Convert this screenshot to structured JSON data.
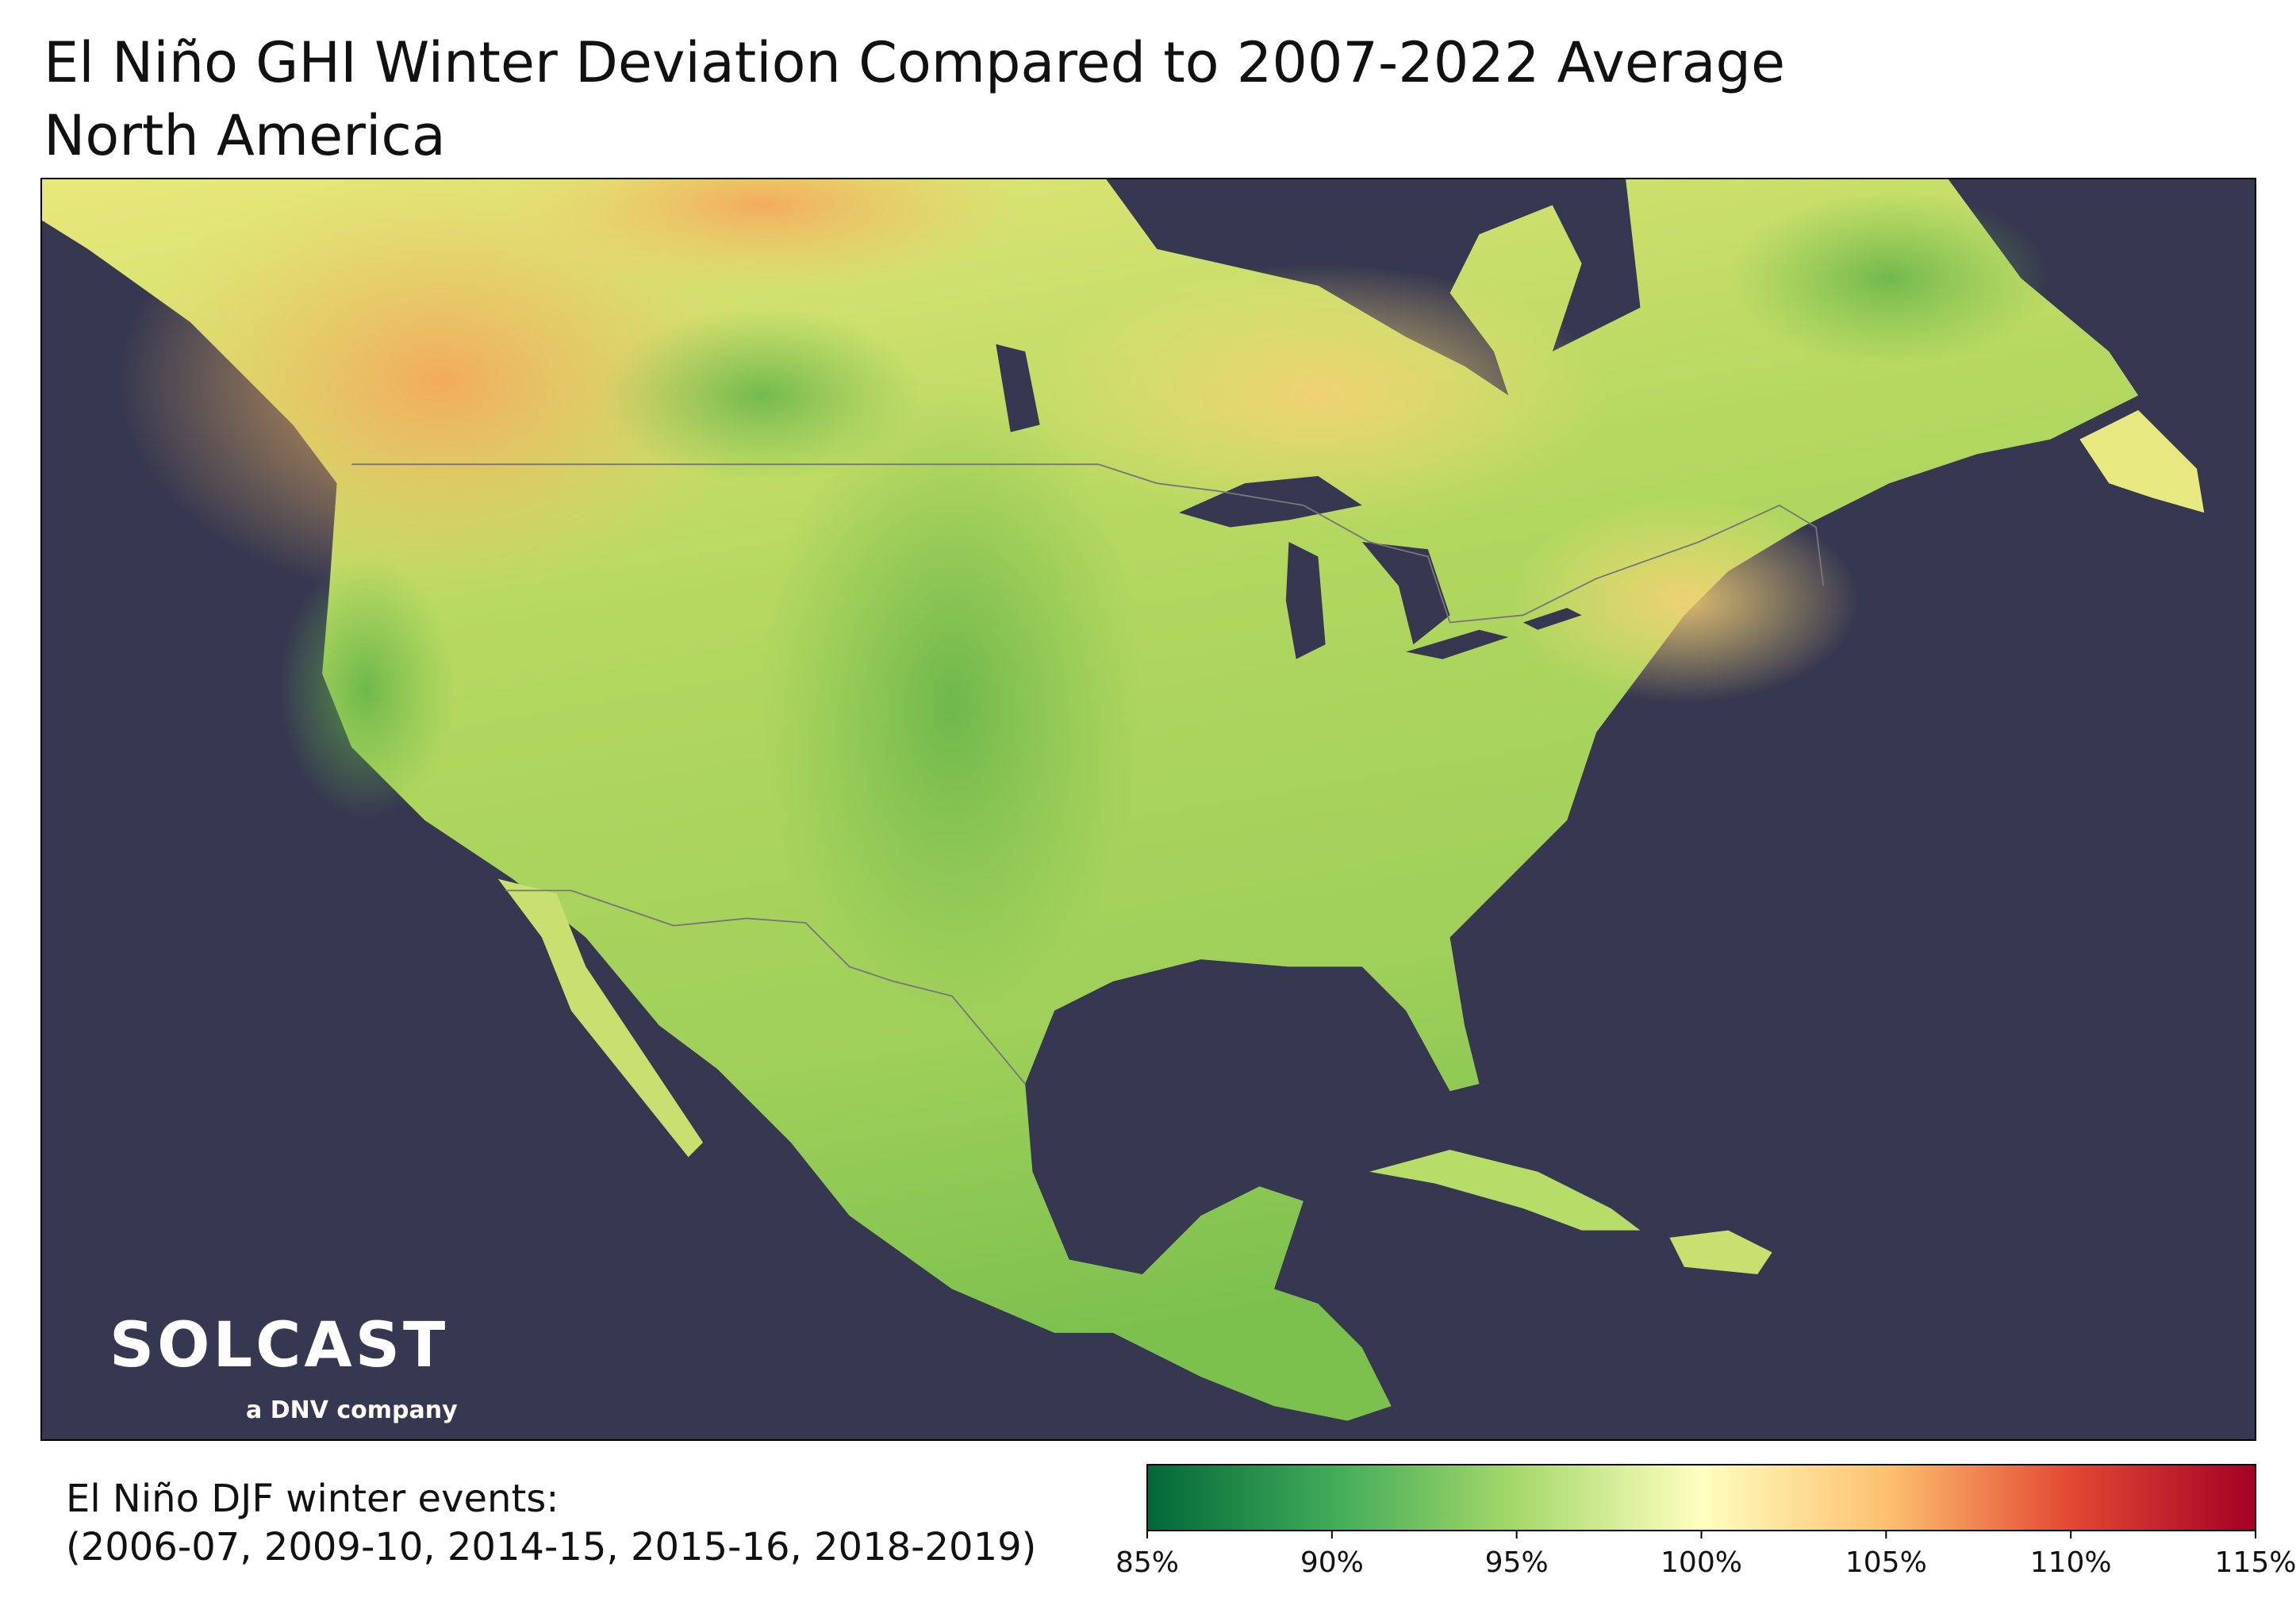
{
  "title": "El Niño GHI Winter Deviation Compared to 2007-2022 Average",
  "subtitle": "North America",
  "logo": {
    "name": "SOLCAST",
    "tagline": "a DNV company"
  },
  "caption": [
    "El Niño DJF winter events:",
    "(2006-07, 2009-10, 2014-15, 2015-16, 2018-2019)"
  ],
  "colorbar": {
    "range": [
      85,
      115
    ],
    "ticks": [
      {
        "value": 85,
        "label": "85%"
      },
      {
        "value": 90,
        "label": "90%"
      },
      {
        "value": 95,
        "label": "95%"
      },
      {
        "value": 100,
        "label": "100%"
      },
      {
        "value": 105,
        "label": "105%"
      },
      {
        "value": 110,
        "label": "110%"
      },
      {
        "value": 115,
        "label": "115%"
      }
    ]
  }
}
